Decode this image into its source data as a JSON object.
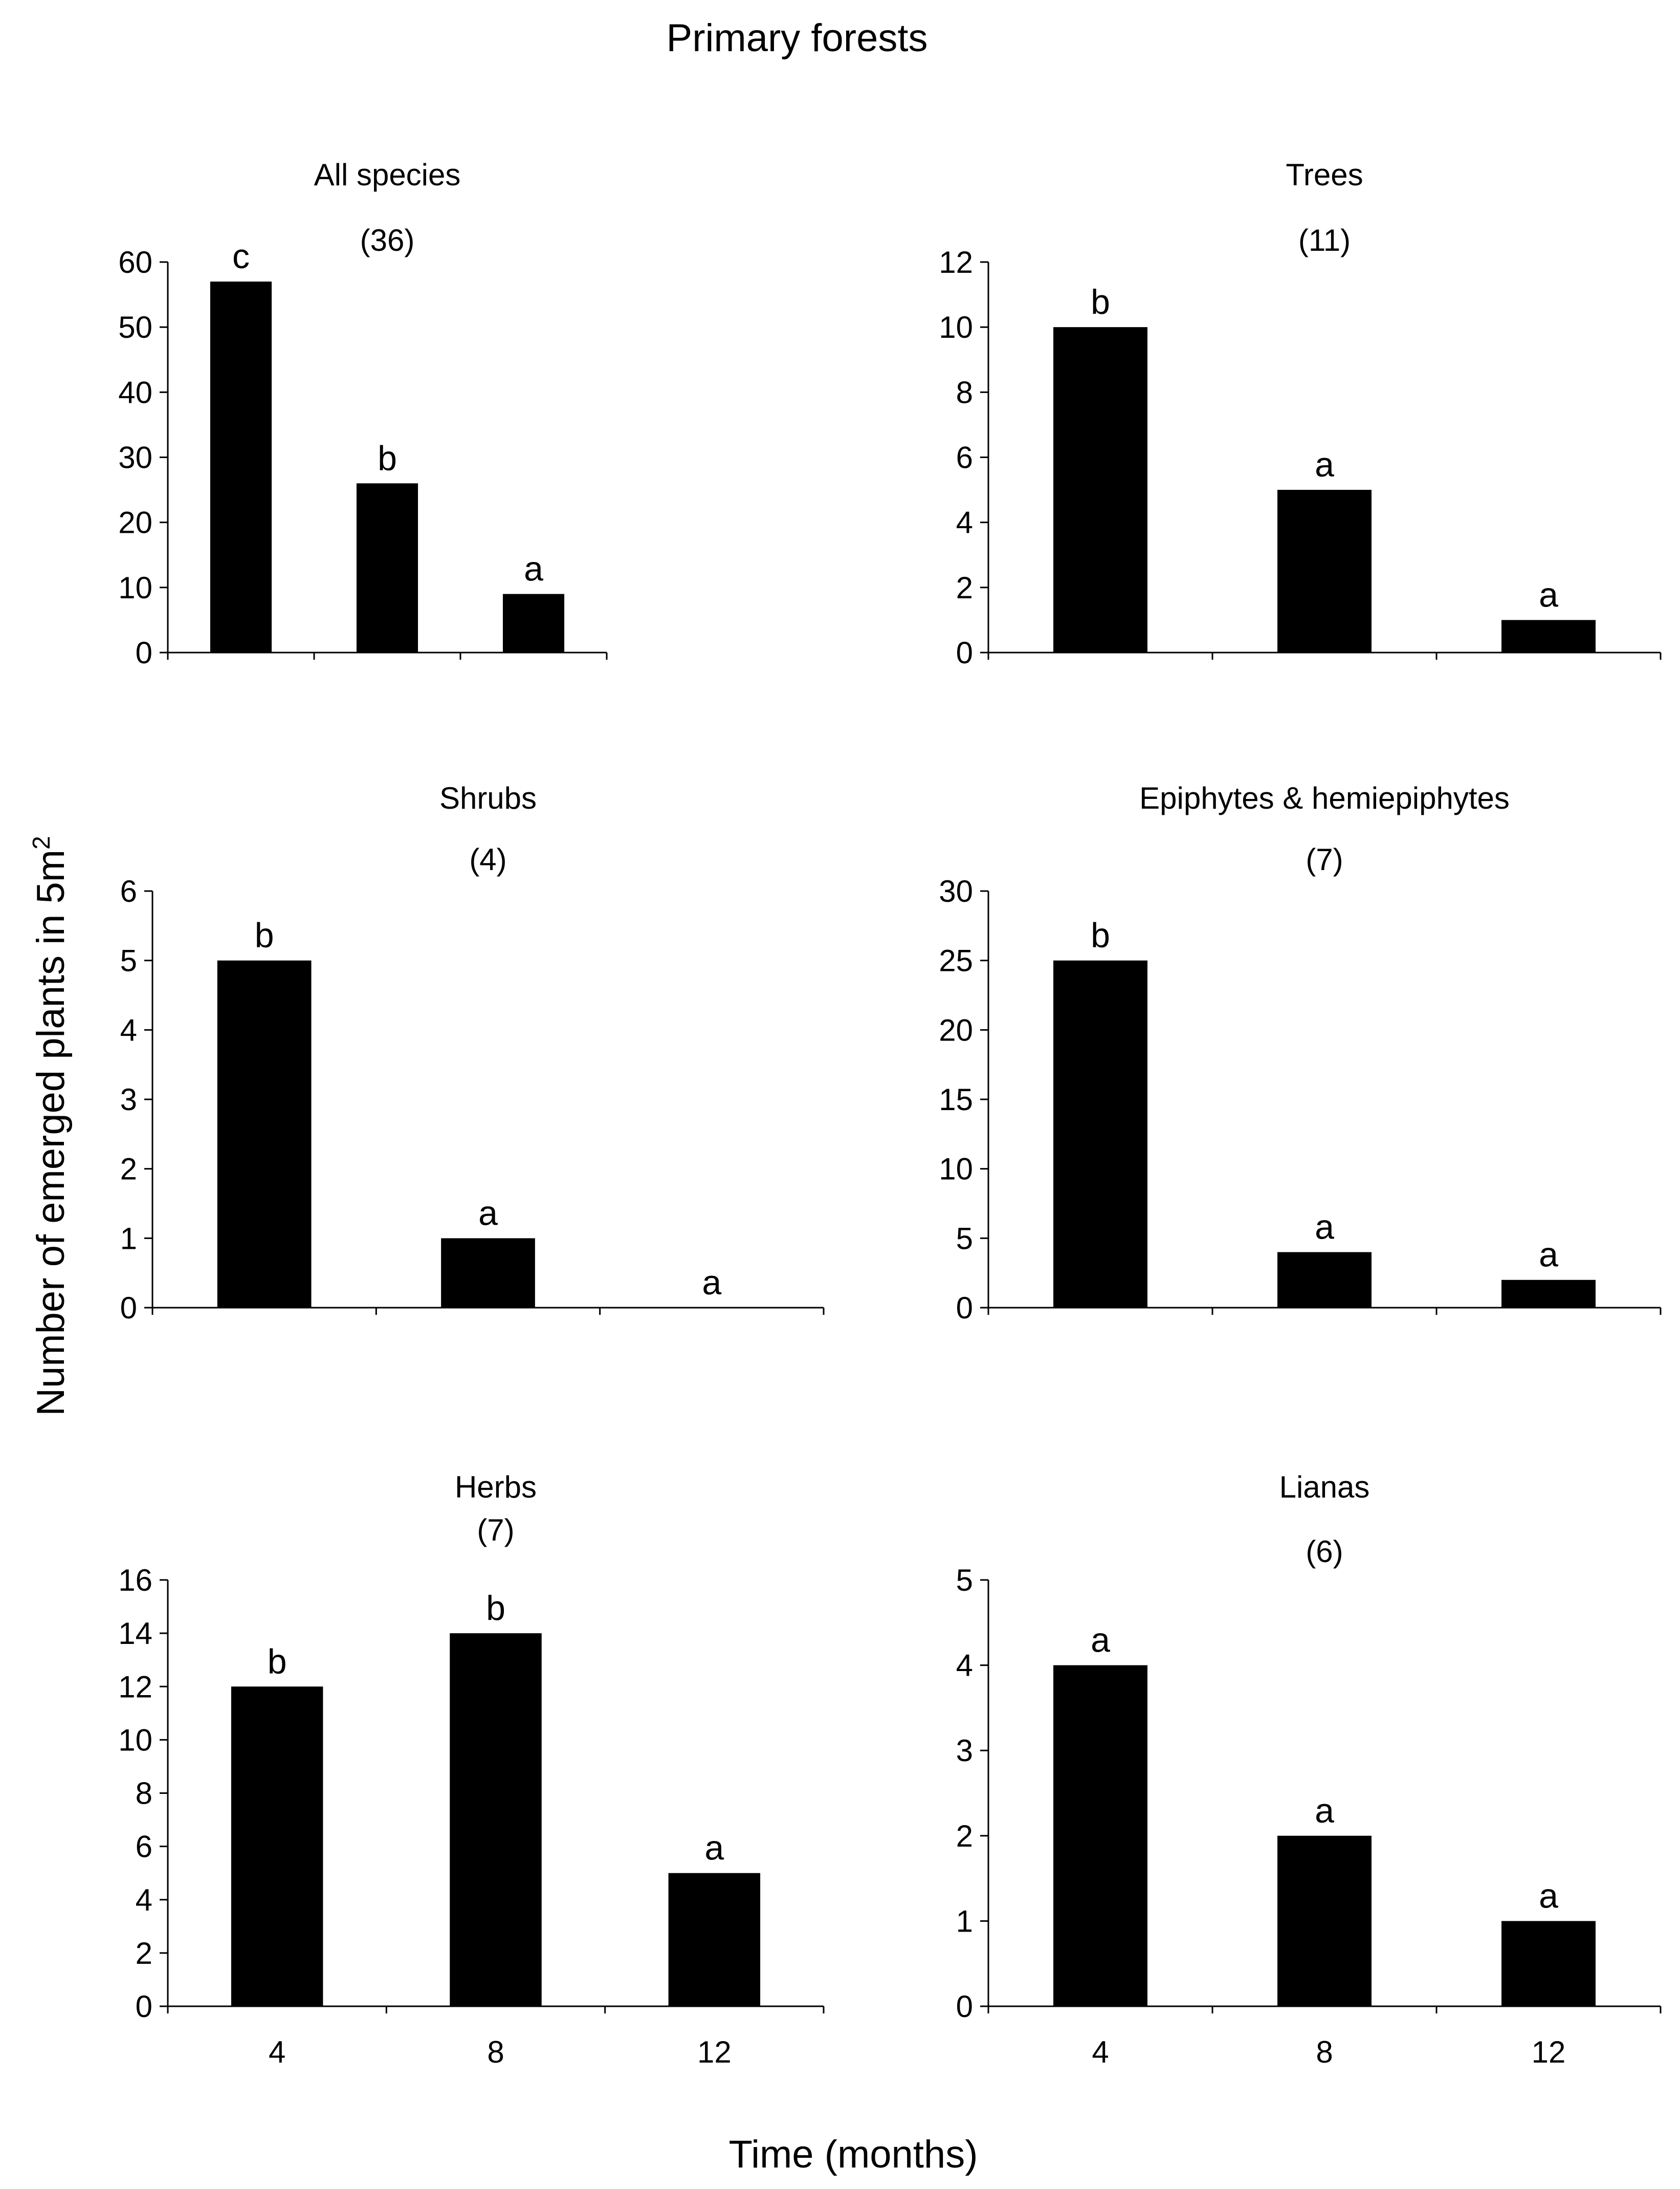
{
  "figure": {
    "title": "Primary forests",
    "ylabel": "Number of emerged plants in 5m",
    "ylabel_superscript": "2",
    "xlabel": "Time (months)",
    "bar_color": "#000000"
  },
  "chart_data": [
    {
      "type": "bar",
      "title": "All species",
      "n_label": "(36)",
      "categories": [
        "4",
        "8",
        "12"
      ],
      "values": [
        57,
        26,
        9
      ],
      "letters": [
        "c",
        "b",
        "a"
      ],
      "ylim": [
        0,
        60
      ],
      "yticks": [
        0,
        10,
        20,
        30,
        40,
        50,
        60
      ],
      "show_xtick_labels": false
    },
    {
      "type": "bar",
      "title": "Trees",
      "n_label": "(11)",
      "categories": [
        "4",
        "8",
        "12"
      ],
      "values": [
        10,
        5,
        1
      ],
      "letters": [
        "b",
        "a",
        "a"
      ],
      "ylim": [
        0,
        12
      ],
      "yticks": [
        0,
        2,
        4,
        6,
        8,
        10,
        12
      ],
      "show_xtick_labels": false
    },
    {
      "type": "bar",
      "title": "Shrubs",
      "n_label": "(4)",
      "categories": [
        "4",
        "8",
        "12"
      ],
      "values": [
        5,
        1,
        0
      ],
      "letters": [
        "b",
        "a",
        "a"
      ],
      "ylim": [
        0,
        6
      ],
      "yticks": [
        0,
        1,
        2,
        3,
        4,
        5,
        6
      ],
      "show_xtick_labels": false
    },
    {
      "type": "bar",
      "title": "Epiphytes & hemiepiphytes",
      "n_label": "(7)",
      "categories": [
        "4",
        "8",
        "12"
      ],
      "values": [
        25,
        4,
        2
      ],
      "letters": [
        "b",
        "a",
        "a"
      ],
      "ylim": [
        0,
        30
      ],
      "yticks": [
        0,
        5,
        10,
        15,
        20,
        25,
        30
      ],
      "show_xtick_labels": false
    },
    {
      "type": "bar",
      "title": "Herbs",
      "n_label": "(7)",
      "categories": [
        "4",
        "8",
        "12"
      ],
      "values": [
        12,
        14,
        5
      ],
      "letters": [
        "b",
        "b",
        "a"
      ],
      "ylim": [
        0,
        16
      ],
      "yticks": [
        0,
        2,
        4,
        6,
        8,
        10,
        12,
        14,
        16
      ],
      "show_xtick_labels": true
    },
    {
      "type": "bar",
      "title": "Lianas",
      "n_label": "(6)",
      "categories": [
        "4",
        "8",
        "12"
      ],
      "values": [
        4,
        2,
        1
      ],
      "letters": [
        "a",
        "a",
        "a"
      ],
      "ylim": [
        0,
        5
      ],
      "yticks": [
        0,
        1,
        2,
        3,
        4,
        5
      ],
      "show_xtick_labels": true
    }
  ]
}
